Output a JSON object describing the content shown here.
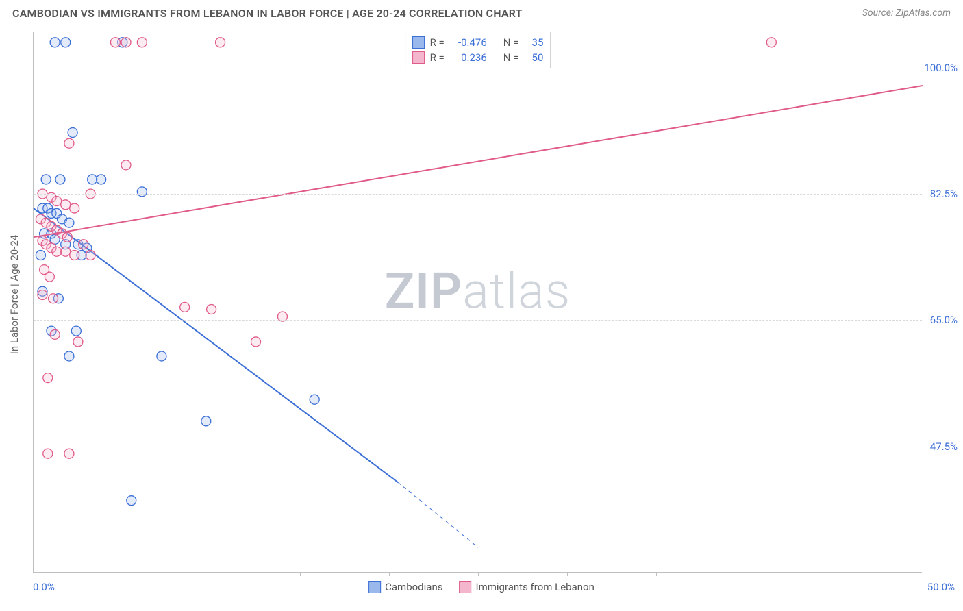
{
  "header": {
    "title": "CAMBODIAN VS IMMIGRANTS FROM LEBANON IN LABOR FORCE | AGE 20-24 CORRELATION CHART",
    "source_prefix": "Source: ",
    "source_name": "ZipAtlas.com"
  },
  "watermark": {
    "zip": "ZIP",
    "atlas": "atlas"
  },
  "chart": {
    "type": "scatter-with-regression",
    "x_domain": [
      0.0,
      50.0
    ],
    "y_domain": [
      30.0,
      105.0
    ],
    "x_ticks_label": {
      "left": "0.0%",
      "right": "50.0%"
    },
    "x_ticks_pos": [
      0,
      5,
      10,
      15,
      20,
      25,
      30,
      35,
      40,
      45,
      50
    ],
    "y_gridlines": [
      {
        "y": 100.0,
        "label": "100.0%"
      },
      {
        "y": 82.5,
        "label": "82.5%"
      },
      {
        "y": 65.0,
        "label": "65.0%"
      },
      {
        "y": 47.5,
        "label": "47.5%"
      }
    ],
    "y_axis_title": "In Labor Force | Age 20-24",
    "background_color": "#ffffff",
    "grid_color": "#d9d9d9",
    "axis_color": "#bfbfbf",
    "tick_label_color": "#3b6fd6",
    "marker_radius": 7,
    "marker_fill_opacity": 0.28,
    "marker_stroke_width": 1.3,
    "line_width": 2
  },
  "series": [
    {
      "name": "Cambodians",
      "color_stroke": "#3b6fd6",
      "color_fill": "#9bb8ec",
      "R": "-0.476",
      "N": "35",
      "regression": {
        "x1": 0,
        "y1": 80.5,
        "x2": 20.5,
        "y2": 42.5,
        "extend_to_x": 25.0,
        "extend_to_y": 33.5
      },
      "points": [
        [
          1.2,
          103.5
        ],
        [
          1.8,
          103.5
        ],
        [
          5.0,
          103.5
        ],
        [
          2.2,
          91.0
        ],
        [
          0.7,
          84.5
        ],
        [
          1.5,
          84.5
        ],
        [
          3.3,
          84.5
        ],
        [
          3.8,
          84.5
        ],
        [
          6.1,
          82.8
        ],
        [
          0.5,
          80.5
        ],
        [
          0.8,
          80.5
        ],
        [
          1.0,
          79.8
        ],
        [
          1.3,
          79.8
        ],
        [
          1.6,
          79.0
        ],
        [
          2.0,
          78.5
        ],
        [
          0.6,
          77.0
        ],
        [
          1.0,
          77.0
        ],
        [
          1.2,
          76.2
        ],
        [
          1.8,
          75.5
        ],
        [
          2.5,
          75.5
        ],
        [
          3.0,
          75.0
        ],
        [
          0.4,
          74.0
        ],
        [
          2.7,
          74.0
        ],
        [
          0.5,
          69.0
        ],
        [
          1.4,
          68.0
        ],
        [
          1.0,
          63.5
        ],
        [
          2.4,
          63.5
        ],
        [
          2.0,
          60.0
        ],
        [
          7.2,
          60.0
        ],
        [
          15.8,
          54.0
        ],
        [
          9.7,
          51.0
        ],
        [
          5.5,
          40.0
        ]
      ]
    },
    {
      "name": "Immigrants from Lebanon",
      "color_stroke": "#e05a8a",
      "color_fill": "#f4b6cc",
      "R": "0.236",
      "N": "50",
      "regression": {
        "x1": 0,
        "y1": 76.5,
        "x2": 50,
        "y2": 97.5
      },
      "points": [
        [
          4.6,
          103.5
        ],
        [
          5.2,
          103.5
        ],
        [
          6.1,
          103.5
        ],
        [
          10.5,
          103.5
        ],
        [
          41.5,
          103.5
        ],
        [
          2.0,
          89.5
        ],
        [
          5.2,
          86.5
        ],
        [
          0.5,
          82.5
        ],
        [
          1.0,
          82.0
        ],
        [
          1.3,
          81.5
        ],
        [
          1.8,
          81.0
        ],
        [
          2.3,
          80.5
        ],
        [
          3.2,
          82.5
        ],
        [
          0.4,
          79.0
        ],
        [
          0.7,
          78.5
        ],
        [
          1.0,
          78.0
        ],
        [
          1.3,
          77.5
        ],
        [
          1.6,
          77.0
        ],
        [
          1.9,
          76.5
        ],
        [
          0.5,
          76.0
        ],
        [
          0.7,
          75.5
        ],
        [
          1.0,
          75.0
        ],
        [
          1.3,
          74.5
        ],
        [
          1.8,
          74.5
        ],
        [
          2.3,
          74.0
        ],
        [
          2.8,
          75.5
        ],
        [
          3.2,
          74.0
        ],
        [
          0.6,
          72.0
        ],
        [
          0.9,
          71.0
        ],
        [
          0.5,
          68.5
        ],
        [
          1.1,
          68.0
        ],
        [
          8.5,
          66.8
        ],
        [
          10.0,
          66.5
        ],
        [
          14.0,
          65.5
        ],
        [
          1.2,
          63.0
        ],
        [
          2.5,
          62.0
        ],
        [
          12.5,
          62.0
        ],
        [
          0.8,
          57.0
        ],
        [
          0.8,
          46.5
        ],
        [
          2.0,
          46.5
        ]
      ]
    }
  ],
  "legend_top": {
    "R_label": "R =",
    "N_label": "N ="
  },
  "legend_bottom": {
    "items": [
      {
        "label": "Cambodians",
        "stroke": "#3b6fd6",
        "fill": "#9bb8ec"
      },
      {
        "label": "Immigrants from Lebanon",
        "stroke": "#e05a8a",
        "fill": "#f4b6cc"
      }
    ]
  }
}
